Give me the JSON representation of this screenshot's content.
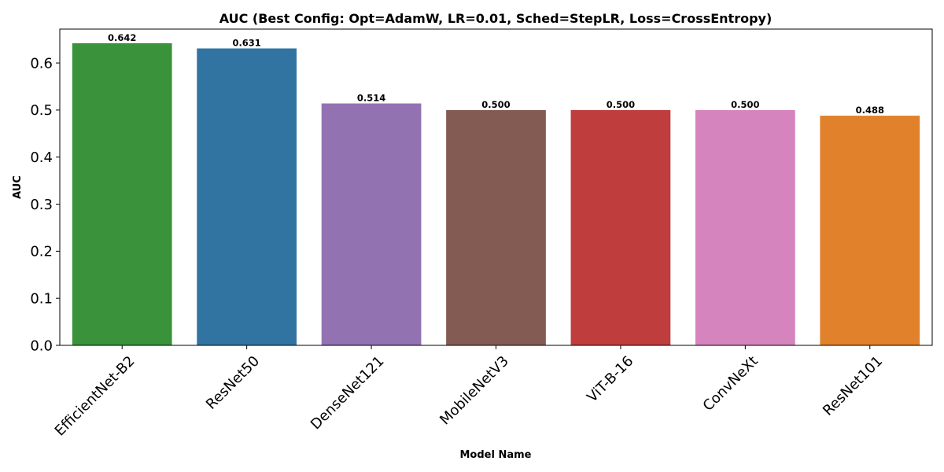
{
  "chart_data": {
    "type": "bar",
    "title": "AUC (Best Config: Opt=AdamW, LR=0.01, Sched=StepLR, Loss=CrossEntropy)",
    "xlabel": "Model Name",
    "ylabel": "AUC",
    "ylim": [
      0,
      0.672
    ],
    "yticks": [
      "0.0",
      "0.1",
      "0.2",
      "0.3",
      "0.4",
      "0.5",
      "0.6"
    ],
    "ytick_values": [
      0,
      0.1,
      0.2,
      0.3,
      0.4,
      0.5,
      0.6
    ],
    "categories": [
      "EfficientNet-B2",
      "ResNet50",
      "DenseNet121",
      "MobileNetV3",
      "ViT-B-16",
      "ConvNeXt",
      "ResNet101"
    ],
    "values": [
      0.642,
      0.631,
      0.514,
      0.5,
      0.5,
      0.5,
      0.488
    ],
    "data_labels": [
      "0.642",
      "0.631",
      "0.514",
      "0.500",
      "0.500",
      "0.500",
      "0.488"
    ],
    "colors": [
      "#3a923a",
      "#3274a1",
      "#9372b2",
      "#845b53",
      "#c03d3e",
      "#d684bd",
      "#e1812c"
    ],
    "grid": false,
    "legend": "none"
  }
}
